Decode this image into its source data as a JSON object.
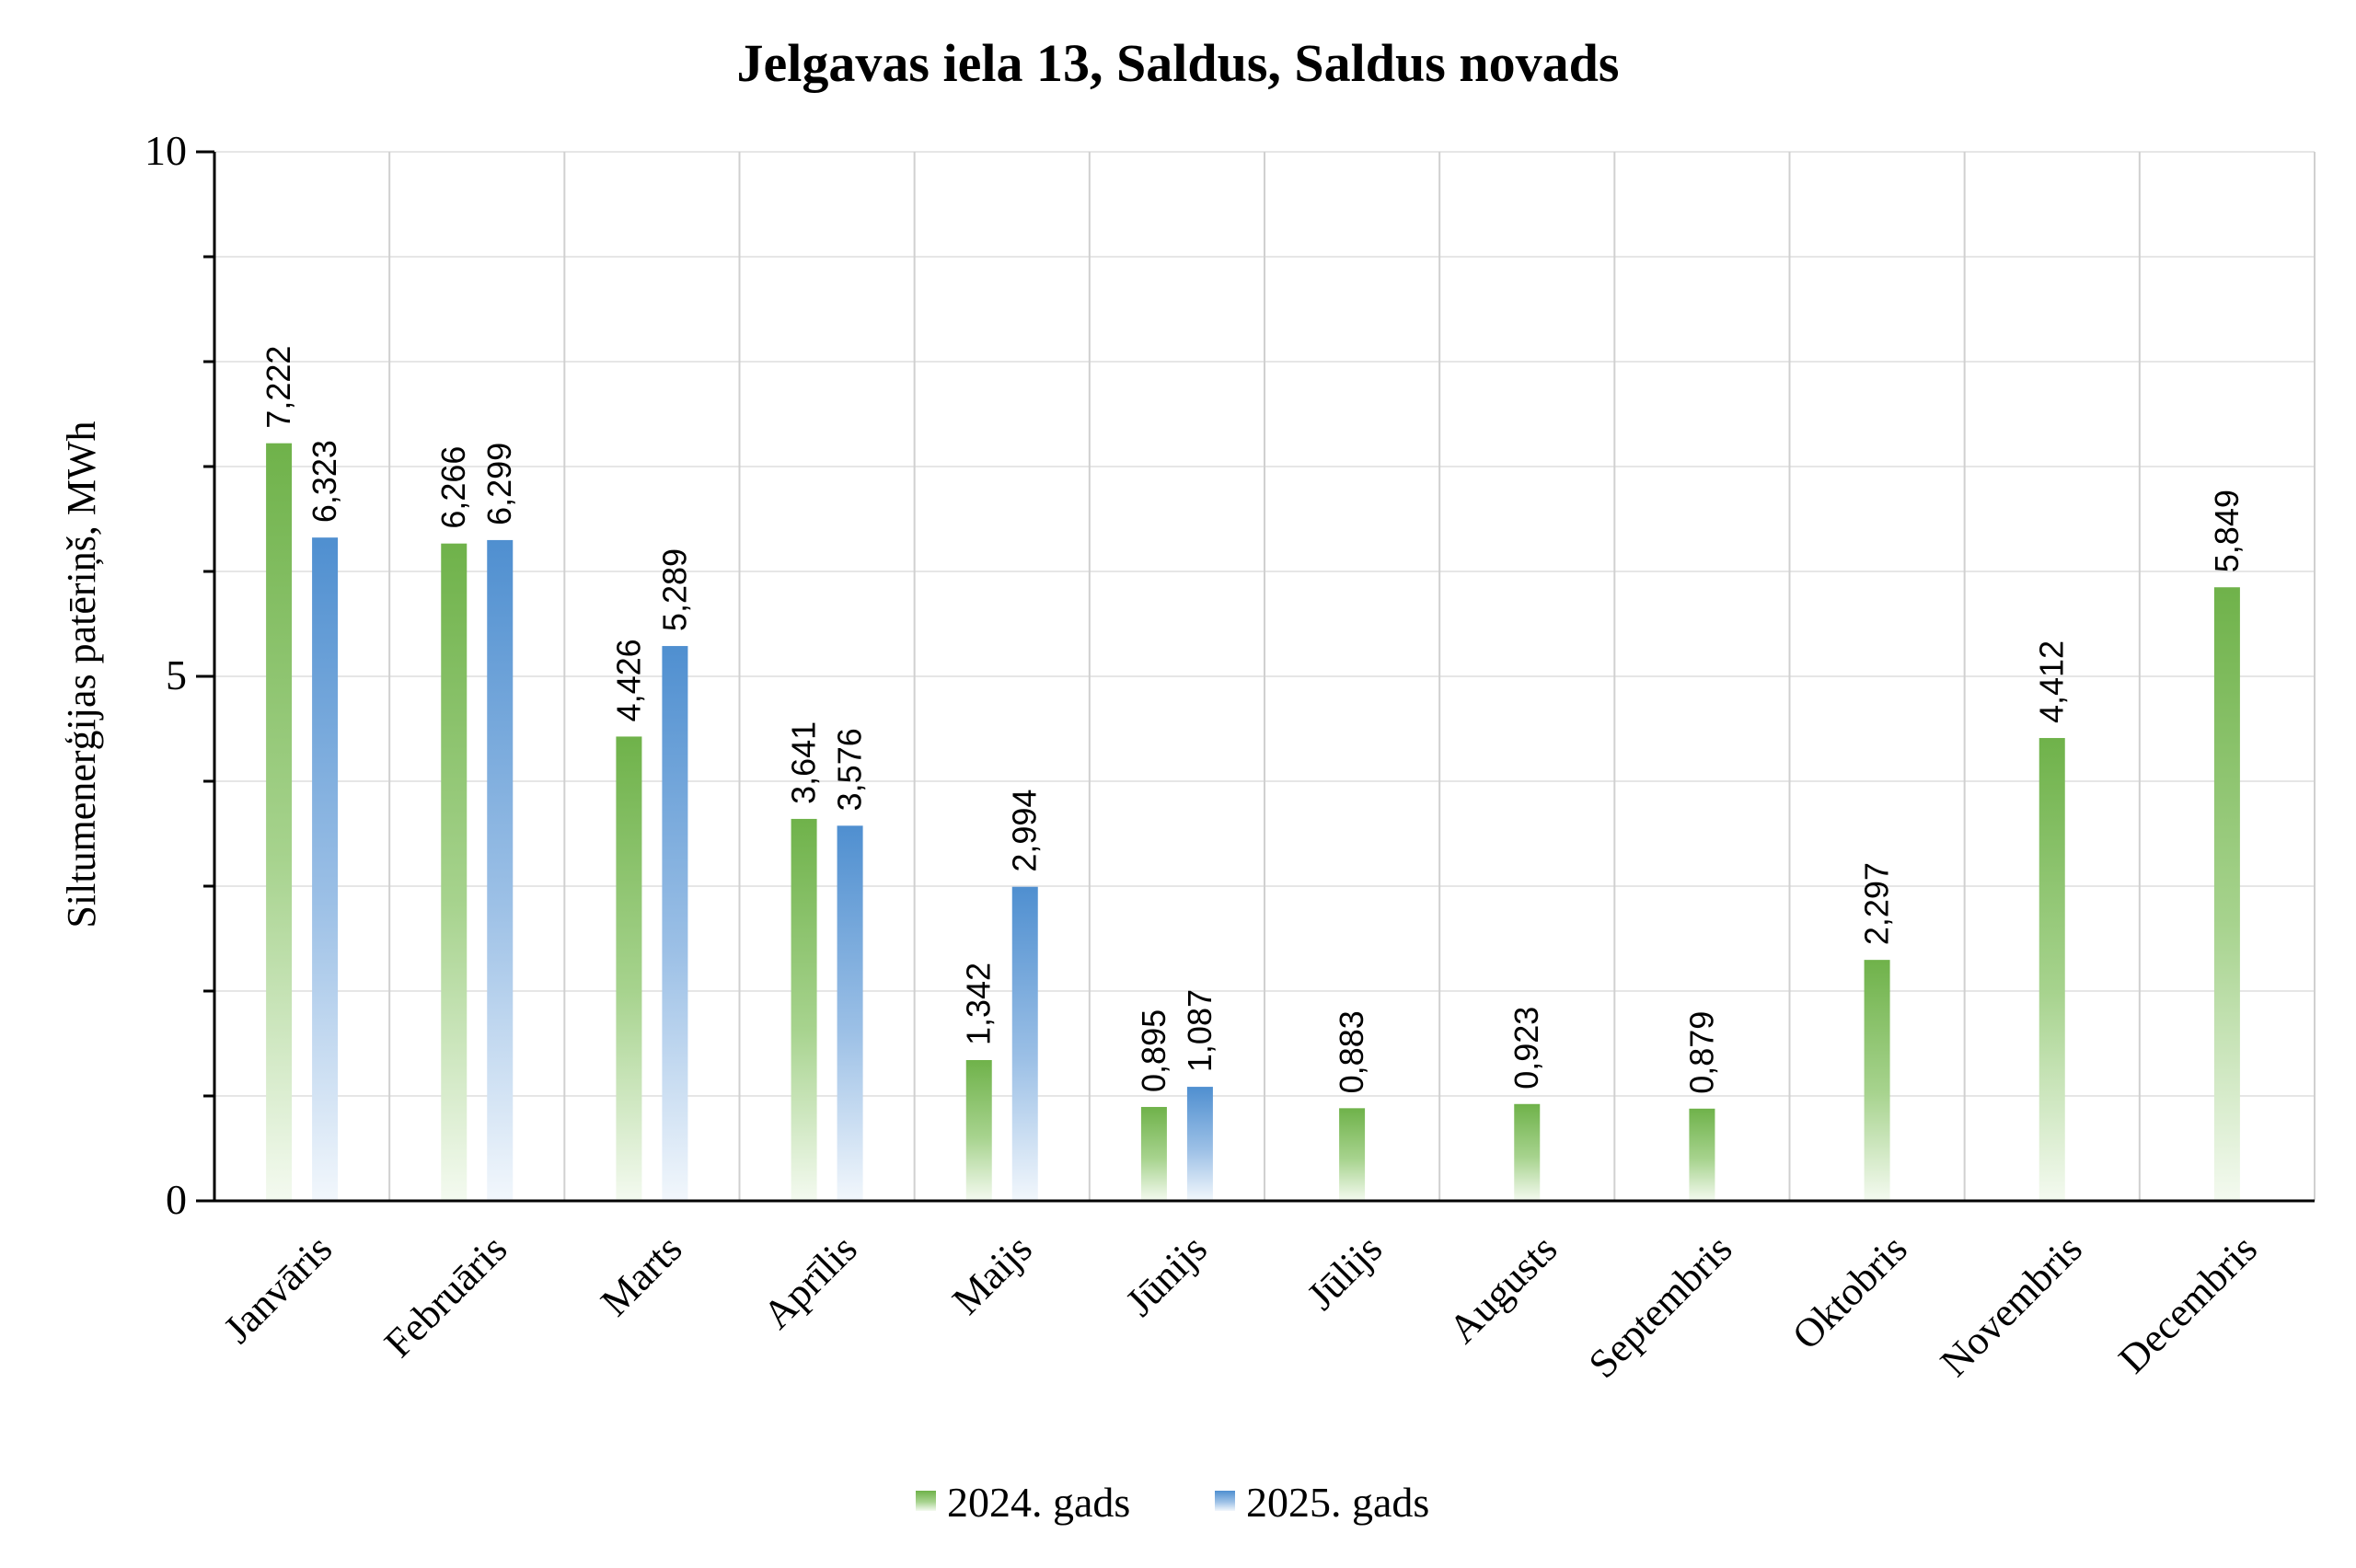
{
  "chart_data": {
    "type": "bar",
    "title": "Jelgavas iela 13, Saldus, Saldus novads",
    "xlabel": "",
    "ylabel": "Siltumenerģijas patēriņš, MWh",
    "ylim": [
      0,
      10
    ],
    "yticks": [
      "0",
      "5",
      "10"
    ],
    "grid": true,
    "legend_position": "bottom",
    "categories": [
      "Janvāris",
      "Februāris",
      "Marts",
      "Aprīlis",
      "Maijs",
      "Jūnijs",
      "Jūlijs",
      "Augusts",
      "Septembris",
      "Oktobris",
      "Novembris",
      "Decembris"
    ],
    "series": [
      {
        "name": "2024. gads",
        "color": "#6fb24a",
        "values": [
          7.222,
          6.266,
          4.426,
          3.641,
          1.342,
          0.895,
          0.883,
          0.923,
          0.879,
          2.297,
          4.412,
          5.849
        ],
        "labels": [
          "7,222",
          "6,266",
          "4,426",
          "3,641",
          "1,342",
          "0,895",
          "0,883",
          "0,923",
          "0,879",
          "2,297",
          "4,412",
          "5,849"
        ]
      },
      {
        "name": "2025. gads",
        "color": "#4f8fd0",
        "values": [
          6.323,
          6.299,
          5.289,
          3.576,
          2.994,
          1.087,
          null,
          null,
          null,
          null,
          null,
          null
        ],
        "labels": [
          "6,323",
          "6,299",
          "5,289",
          "3,576",
          "2,994",
          "1,087",
          "",
          "",
          "",
          "",
          "",
          ""
        ]
      }
    ]
  }
}
